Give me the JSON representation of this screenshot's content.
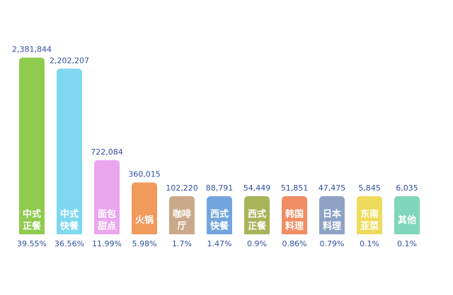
{
  "chart_data": {
    "type": "bar",
    "title": "",
    "xlabel": "",
    "ylabel": "",
    "ylim": [
      0,
      2400000
    ],
    "grid": false,
    "legend": "none",
    "categories": [
      [
        "中式",
        "正餐"
      ],
      [
        "中式",
        "快餐"
      ],
      [
        "面包",
        "甜点"
      ],
      [
        "火锅"
      ],
      [
        "咖啡",
        "厅"
      ],
      [
        "西式",
        "快餐"
      ],
      [
        "西式",
        "正餐"
      ],
      [
        "韩国",
        "料理"
      ],
      [
        "日本",
        "料理"
      ],
      [
        "东南",
        "亚菜"
      ],
      [
        "其他"
      ]
    ],
    "values": [
      2381844,
      2202207,
      722084,
      360015,
      102220,
      88791,
      54449,
      51851,
      47475,
      5845,
      6035
    ],
    "value_labels": [
      "2,381,844",
      "2,202,207",
      "722,084",
      "360,015",
      "102,220",
      "88,791",
      "54,449",
      "51,851",
      "47,475",
      "5,845",
      "6,035"
    ],
    "percent_labels": [
      "39.55%",
      "36.56%",
      "11.99%",
      "5.98%",
      "1.7%",
      "1.47%",
      "0.9%",
      "0.86%",
      "0.79%",
      "0.1%",
      "0.1%"
    ],
    "colors": [
      "#8fcb4e",
      "#7fd8f0",
      "#e9a6ee",
      "#f09a5c",
      "#c9a98a",
      "#72a5de",
      "#a8b35a",
      "#ef8d63",
      "#8ea3c4",
      "#eedb5c",
      "#7fd6bb"
    ]
  }
}
